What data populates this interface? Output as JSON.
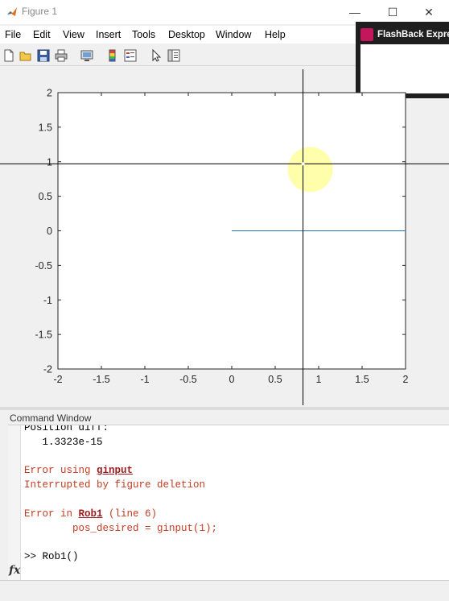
{
  "window": {
    "title": "Figure 1"
  },
  "window_controls": {
    "minimize": "—",
    "maximize": "☐",
    "close": "✕"
  },
  "menu": [
    "File",
    "Edit",
    "View",
    "Insert",
    "Tools",
    "Desktop",
    "Window",
    "Help"
  ],
  "toolbar_icons": [
    "new-figure-icon",
    "open-file-icon",
    "save-icon",
    "print-icon",
    "link-icon",
    "colorbar-icon",
    "legend-icon",
    "pointer-icon",
    "property-editor-icon"
  ],
  "overlay": {
    "title": "FlashBack Expre"
  },
  "chart_data": {
    "type": "line",
    "xlim": [
      -2,
      2
    ],
    "ylim": [
      -2,
      2
    ],
    "x_ticks": [
      "-2",
      "-1.5",
      "-1",
      "-0.5",
      "0",
      "0.5",
      "1",
      "1.5",
      "2"
    ],
    "y_ticks": [
      "2",
      "1.5",
      "1",
      "0.5",
      "0",
      "-0.5",
      "-1",
      "-1.5",
      "-2"
    ],
    "series": [
      {
        "x": [
          0,
          2
        ],
        "y": [
          0,
          0
        ],
        "color": "#1f77b4"
      }
    ],
    "crosshair": {
      "x": 0.82,
      "y": 0.97
    },
    "grid": false
  },
  "command_window": {
    "title": "Command Window",
    "lines": [
      {
        "text": "Position diff:",
        "kind": "normal"
      },
      {
        "text": "   1.3323e-15",
        "kind": "normal"
      },
      {
        "text": "",
        "kind": "normal"
      },
      {
        "prefix": "Error using ",
        "link": "ginput",
        "suffix": "",
        "kind": "error"
      },
      {
        "text": "Interrupted by figure deletion",
        "kind": "error"
      },
      {
        "text": "",
        "kind": "normal"
      },
      {
        "prefix": "Error in ",
        "link": "Rob1",
        "suffix": " (line 6)",
        "kind": "error"
      },
      {
        "text": "        pos_desired = ginput(1);",
        "kind": "error"
      },
      {
        "text": "",
        "kind": "normal"
      },
      {
        "text": ">> Rob1()",
        "kind": "normal"
      }
    ],
    "fx_label": "fx"
  }
}
